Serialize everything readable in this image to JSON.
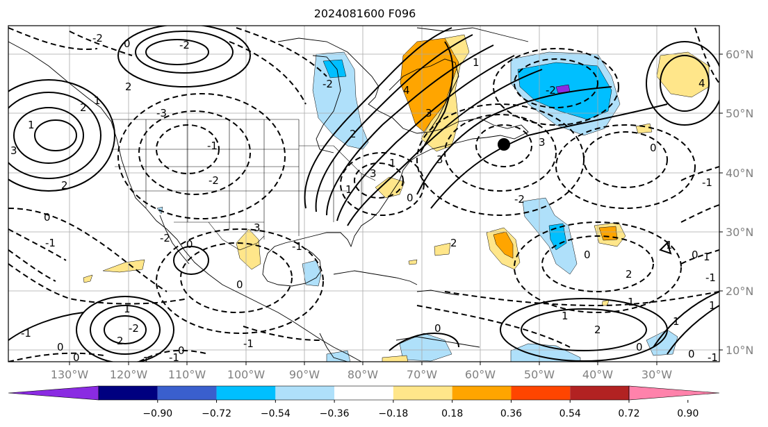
{
  "title": "2024081600 F096",
  "map": {
    "longitude_labels": [
      "130°W",
      "120°W",
      "110°W",
      "100°W",
      "90°W",
      "80°W",
      "70°W",
      "60°W",
      "50°W",
      "40°W",
      "30°W"
    ],
    "latitude_labels": [
      "60°N",
      "50°N",
      "40°N",
      "30°N",
      "20°N",
      "10°N"
    ],
    "contour_labels": [
      "-2",
      "0",
      "-2",
      "-1",
      "2",
      "3",
      "1",
      "2",
      "1",
      "-2",
      "3",
      "-3",
      "1",
      "2",
      "-1",
      "-2",
      "0",
      "1",
      "-1",
      "3",
      "0",
      "-1",
      "0",
      "2",
      "0",
      "-1",
      "1",
      "-2",
      "2",
      "3",
      "4",
      "3",
      "0",
      "3",
      "-2",
      "0",
      "2",
      "1",
      "-2",
      "0",
      "-1",
      "1",
      "-1",
      "1",
      "2",
      "1",
      "0",
      "1",
      "2",
      "-1",
      "4",
      "0",
      "0",
      "1",
      "1",
      "0",
      "-2",
      "0",
      "-1",
      "0",
      "-1"
    ],
    "marker": "black-dot"
  },
  "colorbar": {
    "ticks": [
      "−0.90",
      "−0.72",
      "−0.54",
      "−0.36",
      "−0.18",
      "0.18",
      "0.36",
      "0.54",
      "0.72",
      "0.90"
    ],
    "colors": [
      "#8a2be2",
      "#000080",
      "#3a5fcd",
      "#00bfff",
      "#afe0fa",
      "#ffffff",
      "#ffe68a",
      "#ffa500",
      "#ff4500",
      "#b22222",
      "#ff82ab"
    ]
  }
}
